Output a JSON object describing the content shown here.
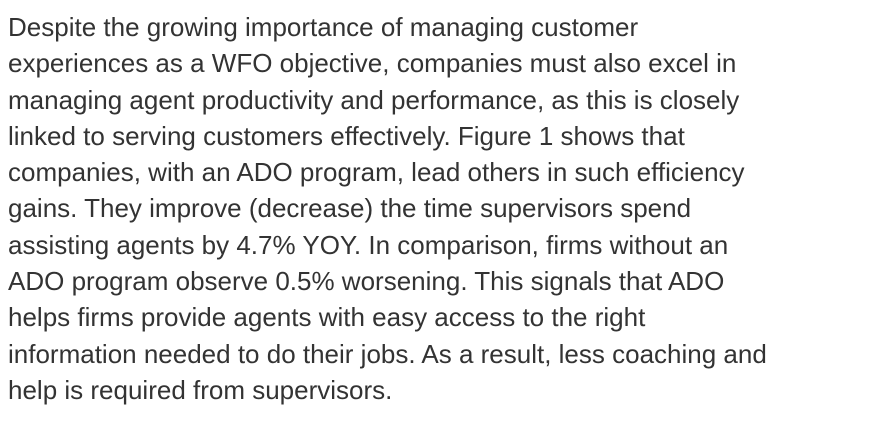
{
  "paragraph": {
    "lines": [
      "Despite the growing importance of managing customer",
      "experiences as a WFO objective, companies must also excel in",
      "managing agent productivity and performance, as this is closely",
      "linked to serving customers effectively. Figure 1 shows that",
      "companies, with an ADO program, lead others in such efficiency",
      "gains. They improve (decrease) the time supervisors spend",
      "assisting agents by 4.7% YOY. In comparison, firms without an",
      "ADO program observe 0.5% worsening. This signals that ADO",
      "helps firms provide agents with easy access to the right",
      "information needed to do their jobs. As a result, less coaching and",
      "help is required from supervisors."
    ]
  }
}
